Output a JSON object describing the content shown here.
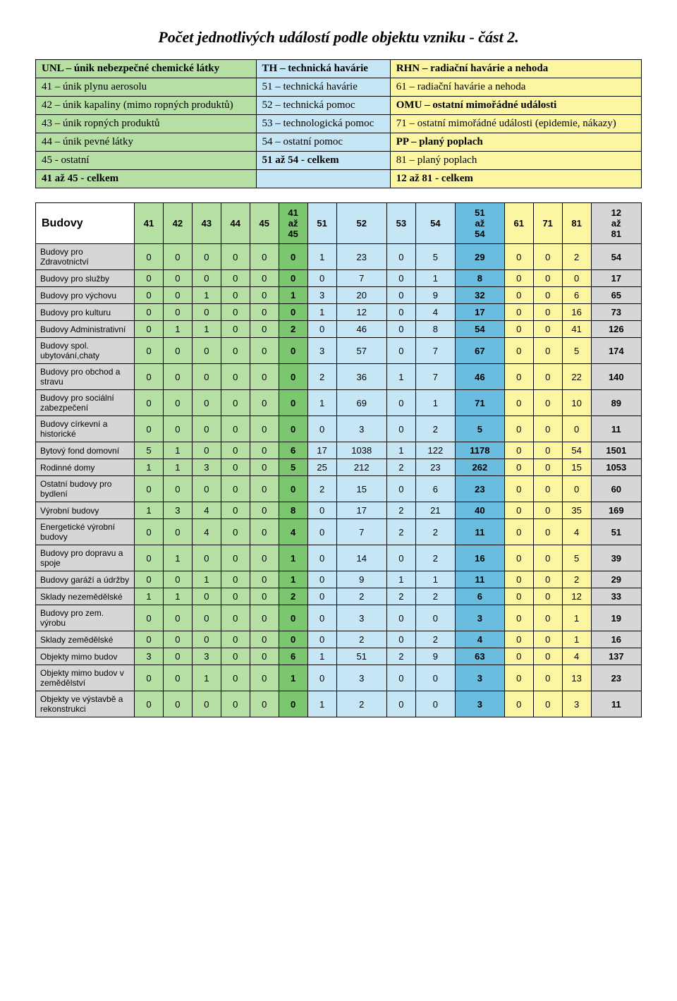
{
  "page_title": "Počet jednotlivých událostí podle objektu vzniku - část 2.",
  "legend": {
    "colors": {
      "col1_bg": "#b5dfa3",
      "col2_bg": "#c7e6f5",
      "col3_bg": "#fcf6a3"
    },
    "rows": [
      [
        "UNL – únik nebezpečné chemické látky",
        "TH – technická havárie",
        "RHN – radiační havárie a nehoda"
      ],
      [
        "41 – únik plynu aerosolu",
        "51 – technická havárie",
        "61 – radiační havárie a nehoda"
      ],
      [
        "42 – únik kapaliny (mimo ropných produktů)",
        "52 – technická pomoc",
        "OMU – ostatní mimořádné události"
      ],
      [
        "43 – únik ropných produktů",
        "53 – technologická pomoc",
        "71 – ostatní mimořádné události (epidemie, nákazy)"
      ],
      [
        "44 – únik pevné látky",
        "54 – ostatní pomoc",
        "PP – planý poplach"
      ],
      [
        "45 - ostatní",
        "51 až 54 - celkem",
        "81 – planý poplach"
      ],
      [
        "41 až 45 - celkem",
        "",
        "12 až 81 - celkem"
      ]
    ],
    "bold_map": [
      [
        true,
        true,
        true
      ],
      [
        false,
        false,
        false
      ],
      [
        false,
        false,
        true
      ],
      [
        false,
        false,
        false
      ],
      [
        false,
        false,
        true
      ],
      [
        false,
        true,
        false
      ],
      [
        true,
        false,
        true
      ]
    ]
  },
  "data_table": {
    "corner_label": "Budovy",
    "columns": [
      {
        "label": "41",
        "bg": "#b5dfa3",
        "bold": false
      },
      {
        "label": "42",
        "bg": "#b5dfa3",
        "bold": false
      },
      {
        "label": "43",
        "bg": "#b5dfa3",
        "bold": false
      },
      {
        "label": "44",
        "bg": "#b5dfa3",
        "bold": false
      },
      {
        "label": "45",
        "bg": "#b5dfa3",
        "bold": false
      },
      {
        "label": "41\naž\n45",
        "bg": "#7dc670",
        "bold": true
      },
      {
        "label": "51",
        "bg": "#c7e6f5",
        "bold": false
      },
      {
        "label": "52",
        "bg": "#c7e6f5",
        "bold": false
      },
      {
        "label": "53",
        "bg": "#c7e6f5",
        "bold": false
      },
      {
        "label": "54",
        "bg": "#c7e6f5",
        "bold": false
      },
      {
        "label": "51\naž\n54",
        "bg": "#6bbde0",
        "bold": true
      },
      {
        "label": "61",
        "bg": "#fcf6a3",
        "bold": false
      },
      {
        "label": "71",
        "bg": "#fcf6a3",
        "bold": false
      },
      {
        "label": "81",
        "bg": "#fcf6a3",
        "bold": false
      },
      {
        "label": "12\naž\n81",
        "bg": "#d6d6d6",
        "bold": true
      }
    ],
    "row_label_bg": "#d6d6d6",
    "rows": [
      {
        "label": "Budovy pro Zdravotnictví",
        "values": [
          "0",
          "0",
          "0",
          "0",
          "0",
          "0",
          "1",
          "23",
          "0",
          "5",
          "29",
          "0",
          "0",
          "2",
          "54"
        ]
      },
      {
        "label": "Budovy pro služby",
        "values": [
          "0",
          "0",
          "0",
          "0",
          "0",
          "0",
          "0",
          "7",
          "0",
          "1",
          "8",
          "0",
          "0",
          "0",
          "17"
        ]
      },
      {
        "label": "Budovy pro výchovu",
        "values": [
          "0",
          "0",
          "1",
          "0",
          "0",
          "1",
          "3",
          "20",
          "0",
          "9",
          "32",
          "0",
          "0",
          "6",
          "65"
        ]
      },
      {
        "label": "Budovy pro kulturu",
        "values": [
          "0",
          "0",
          "0",
          "0",
          "0",
          "0",
          "1",
          "12",
          "0",
          "4",
          "17",
          "0",
          "0",
          "16",
          "73"
        ]
      },
      {
        "label": "Budovy Administrativní",
        "values": [
          "0",
          "1",
          "1",
          "0",
          "0",
          "2",
          "0",
          "46",
          "0",
          "8",
          "54",
          "0",
          "0",
          "41",
          "126"
        ]
      },
      {
        "label": "Budovy spol. ubytování,chaty",
        "values": [
          "0",
          "0",
          "0",
          "0",
          "0",
          "0",
          "3",
          "57",
          "0",
          "7",
          "67",
          "0",
          "0",
          "5",
          "174"
        ]
      },
      {
        "label": "Budovy pro obchod a stravu",
        "values": [
          "0",
          "0",
          "0",
          "0",
          "0",
          "0",
          "2",
          "36",
          "1",
          "7",
          "46",
          "0",
          "0",
          "22",
          "140"
        ]
      },
      {
        "label": "Budovy pro sociální zabezpečení",
        "values": [
          "0",
          "0",
          "0",
          "0",
          "0",
          "0",
          "1",
          "69",
          "0",
          "1",
          "71",
          "0",
          "0",
          "10",
          "89"
        ]
      },
      {
        "label": "Budovy církevní a historické",
        "values": [
          "0",
          "0",
          "0",
          "0",
          "0",
          "0",
          "0",
          "3",
          "0",
          "2",
          "5",
          "0",
          "0",
          "0",
          "11"
        ]
      },
      {
        "label": "Bytový fond domovní",
        "values": [
          "5",
          "1",
          "0",
          "0",
          "0",
          "6",
          "17",
          "1038",
          "1",
          "122",
          "1178",
          "0",
          "0",
          "54",
          "1501"
        ]
      },
      {
        "label": "Rodinné domy",
        "values": [
          "1",
          "1",
          "3",
          "0",
          "0",
          "5",
          "25",
          "212",
          "2",
          "23",
          "262",
          "0",
          "0",
          "15",
          "1053"
        ]
      },
      {
        "label": "Ostatní budovy pro bydlení",
        "values": [
          "0",
          "0",
          "0",
          "0",
          "0",
          "0",
          "2",
          "15",
          "0",
          "6",
          "23",
          "0",
          "0",
          "0",
          "60"
        ]
      },
      {
        "label": "Výrobní budovy",
        "values": [
          "1",
          "3",
          "4",
          "0",
          "0",
          "8",
          "0",
          "17",
          "2",
          "21",
          "40",
          "0",
          "0",
          "35",
          "169"
        ]
      },
      {
        "label": "Energetické výrobní budovy",
        "values": [
          "0",
          "0",
          "4",
          "0",
          "0",
          "4",
          "0",
          "7",
          "2",
          "2",
          "11",
          "0",
          "0",
          "4",
          "51"
        ]
      },
      {
        "label": "Budovy pro dopravu a spoje",
        "values": [
          "0",
          "1",
          "0",
          "0",
          "0",
          "1",
          "0",
          "14",
          "0",
          "2",
          "16",
          "0",
          "0",
          "5",
          "39"
        ]
      },
      {
        "label": "Budovy garáží a údržby",
        "values": [
          "0",
          "0",
          "1",
          "0",
          "0",
          "1",
          "0",
          "9",
          "1",
          "1",
          "11",
          "0",
          "0",
          "2",
          "29"
        ]
      },
      {
        "label": "Sklady nezemědělské",
        "values": [
          "1",
          "1",
          "0",
          "0",
          "0",
          "2",
          "0",
          "2",
          "2",
          "2",
          "6",
          "0",
          "0",
          "12",
          "33"
        ]
      },
      {
        "label": "Budovy pro zem. výrobu",
        "values": [
          "0",
          "0",
          "0",
          "0",
          "0",
          "0",
          "0",
          "3",
          "0",
          "0",
          "3",
          "0",
          "0",
          "1",
          "19"
        ]
      },
      {
        "label": "Sklady zemědělské",
        "values": [
          "0",
          "0",
          "0",
          "0",
          "0",
          "0",
          "0",
          "2",
          "0",
          "2",
          "4",
          "0",
          "0",
          "1",
          "16"
        ]
      },
      {
        "label": "Objekty mimo budov",
        "values": [
          "3",
          "0",
          "3",
          "0",
          "0",
          "6",
          "1",
          "51",
          "2",
          "9",
          "63",
          "0",
          "0",
          "4",
          "137"
        ]
      },
      {
        "label": "Objekty mimo budov v zemědělství",
        "values": [
          "0",
          "0",
          "1",
          "0",
          "0",
          "1",
          "0",
          "3",
          "0",
          "0",
          "3",
          "0",
          "0",
          "13",
          "23"
        ]
      },
      {
        "label": "Objekty ve výstavbě a rekonstrukci",
        "values": [
          "0",
          "0",
          "0",
          "0",
          "0",
          "0",
          "1",
          "2",
          "0",
          "0",
          "3",
          "0",
          "0",
          "3",
          "11"
        ]
      }
    ]
  }
}
